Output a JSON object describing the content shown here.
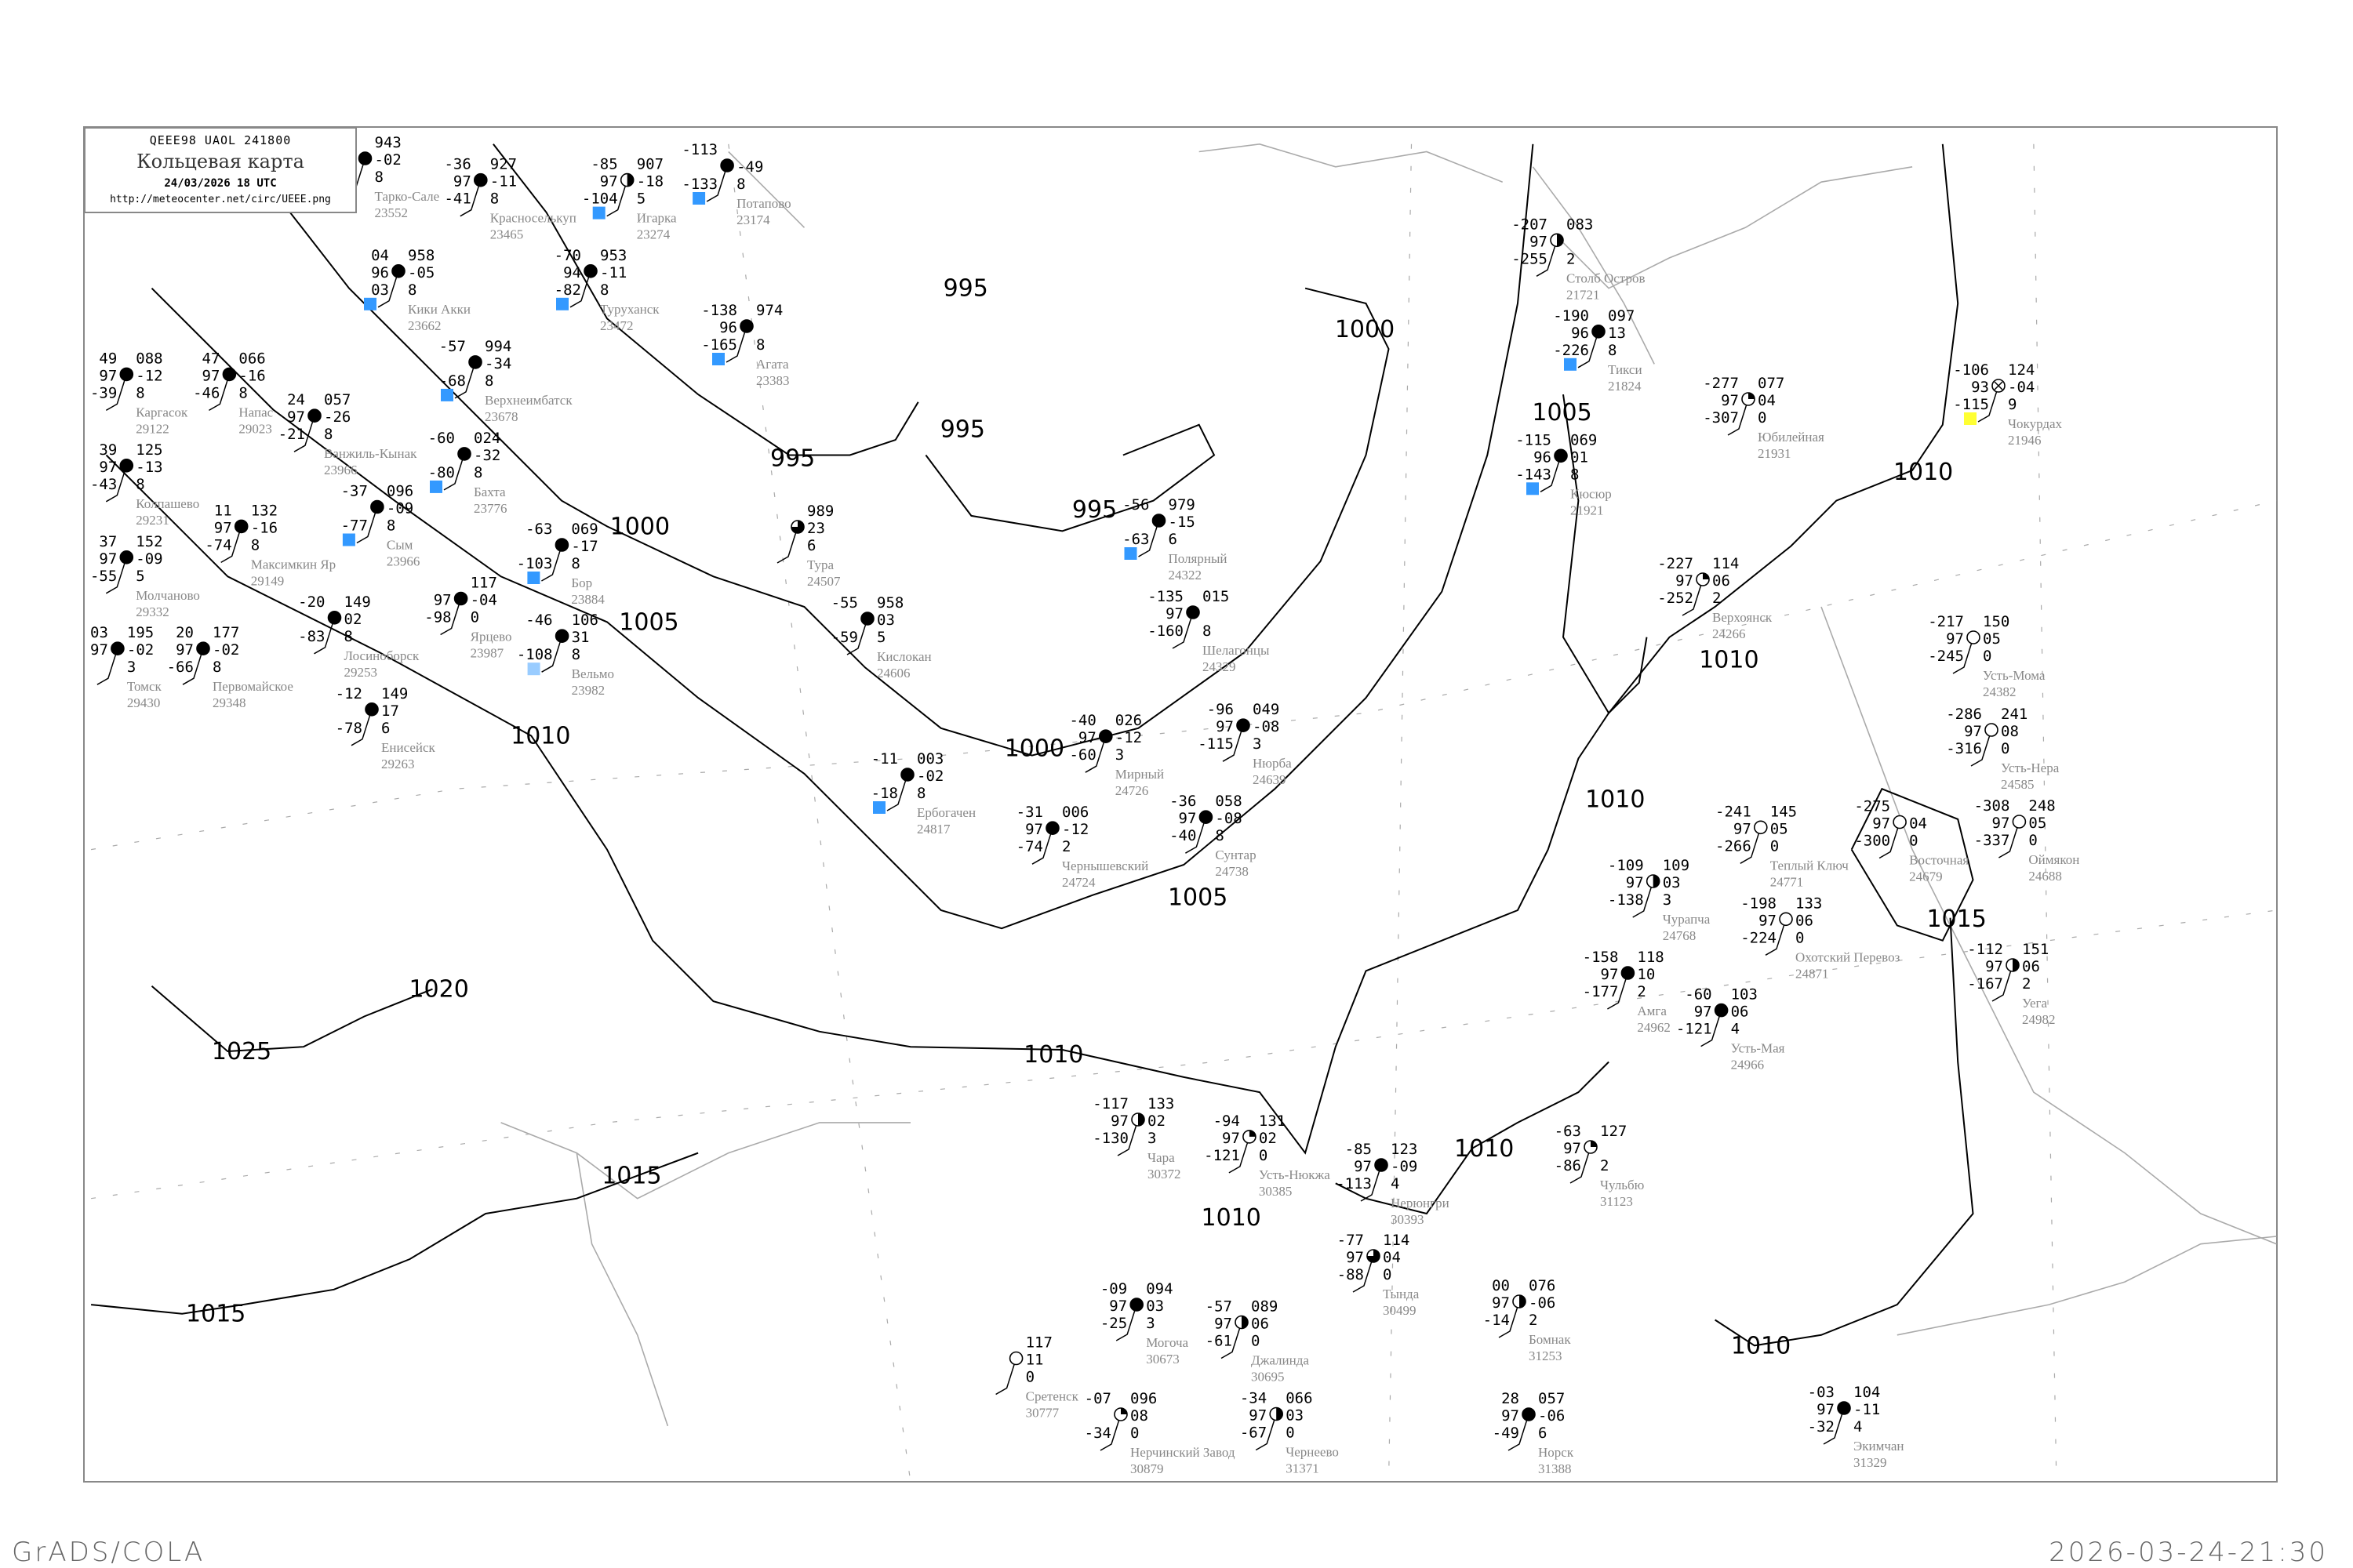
{
  "header": {
    "code_line": "QEEE98  UAOL  241800",
    "title": "Кольцевая карта",
    "date": "24/03/2026 18 UTC",
    "url": "http://meteocenter.net/circ/UEEE.png"
  },
  "footer": {
    "left": "GrADS/COLA",
    "right": "2026-03-24-21:30"
  },
  "colors": {
    "isobar": "#000000",
    "coastline": "#aaaaaa",
    "station_name": "#888888",
    "snow_marker": "#3399ff",
    "light_marker": "#99ccff",
    "yellow_marker": "#ffff33"
  },
  "isobar_labels": [
    "995",
    "995",
    "995",
    "995",
    "1000",
    "1000",
    "1000",
    "1005",
    "1005",
    "1005",
    "1010",
    "1010",
    "1010",
    "1010",
    "1010",
    "1010",
    "1010",
    "1010",
    "1015",
    "1015",
    "1015",
    "1020",
    "1025"
  ],
  "stations": [
    {
      "name": "Тарко-Сале",
      "id": "23552",
      "t": "",
      "vis": "",
      "td": "",
      "p": "943",
      "dp": "-02",
      "c": "8",
      "cover": "full"
    },
    {
      "name": "Красноселькуп",
      "id": "23465",
      "t": "-36",
      "vis": "97",
      "td": "-41",
      "p": "927",
      "dp": "-11",
      "c": "8",
      "cover": "full"
    },
    {
      "name": "Игарка",
      "id": "23274",
      "t": "-85",
      "vis": "97",
      "td": "-104",
      "p": "907",
      "dp": "-18",
      "c": "5",
      "cover": "half",
      "mark": "snow"
    },
    {
      "name": "Потапово",
      "id": "23174",
      "t": "-113",
      "vis": "",
      "td": "-133",
      "p": "",
      "dp": "-49",
      "c": "8",
      "cover": "full",
      "mark": "snow"
    },
    {
      "name": "Кики Акки",
      "id": "23662",
      "t": "04",
      "vis": "96",
      "td": "03",
      "p": "958",
      "dp": "-05",
      "c": "8",
      "cover": "full",
      "mark": "snow"
    },
    {
      "name": "Туруханск",
      "id": "23472",
      "t": "-70",
      "vis": "94",
      "td": "-82",
      "p": "953",
      "dp": "-11",
      "c": "8",
      "cover": "full",
      "mark": "snow"
    },
    {
      "name": "Агата",
      "id": "23383",
      "t": "-138",
      "vis": "96",
      "td": "-165",
      "p": "974",
      "dp": "",
      "c": "8",
      "cover": "full",
      "mark": "snow"
    },
    {
      "name": "Каргасок",
      "id": "29122",
      "t": "49",
      "vis": "97",
      "td": "-39",
      "p": "088",
      "dp": "-12",
      "c": "8",
      "cover": "full"
    },
    {
      "name": "Напас",
      "id": "29023",
      "t": "47",
      "vis": "97",
      "td": "-46",
      "p": "066",
      "dp": "-16",
      "c": "8",
      "cover": "full"
    },
    {
      "name": "Ванжиль-Кынак",
      "id": "23966",
      "t": "24",
      "vis": "97",
      "td": "-21",
      "p": "057",
      "dp": "-26",
      "c": "8",
      "cover": "full"
    },
    {
      "name": "Верхнеимбатск",
      "id": "23678",
      "t": "-57",
      "vis": "",
      "td": "-68",
      "p": "994",
      "dp": "-34",
      "c": "8",
      "cover": "full",
      "mark": "snow"
    },
    {
      "name": "Бахта",
      "id": "23776",
      "t": "-60",
      "vis": "",
      "td": "-80",
      "p": "024",
      "dp": "-32",
      "c": "8",
      "cover": "full",
      "mark": "snow"
    },
    {
      "name": "Бор",
      "id": "23884",
      "t": "-63",
      "vis": "",
      "td": "-103",
      "p": "069",
      "dp": "-17",
      "c": "8",
      "cover": "full",
      "mark": "snow"
    },
    {
      "name": "Колпашево",
      "id": "29231",
      "t": "39",
      "vis": "97",
      "td": "-43",
      "p": "125",
      "dp": "-13",
      "c": "8",
      "cover": "full"
    },
    {
      "name": "Молчаново",
      "id": "29332",
      "t": "37",
      "vis": "97",
      "td": "-55",
      "p": "152",
      "dp": "-09",
      "c": "5",
      "cover": "full"
    },
    {
      "name": "Сым",
      "id": "23966",
      "t": "-37",
      "vis": "",
      "td": "-77",
      "p": "096",
      "dp": "-09",
      "c": "8",
      "cover": "full",
      "mark": "snow"
    },
    {
      "name": "Ярцево",
      "id": "23987",
      "t": "",
      "vis": "97",
      "td": "-98",
      "p": "117",
      "dp": "-04",
      "c": "0",
      "cover": "full"
    },
    {
      "name": "Максимкин Яр",
      "id": "29149",
      "t": "11",
      "vis": "97",
      "td": "-74",
      "p": "132",
      "dp": "-16",
      "c": "8",
      "cover": "full"
    },
    {
      "name": "Вельмо",
      "id": "23982",
      "t": "-46",
      "vis": "",
      "td": "-108",
      "p": "106",
      "dp": "31",
      "c": "8",
      "cover": "full",
      "mark": "light"
    },
    {
      "name": "Томск",
      "id": "29430",
      "t": "03",
      "vis": "97",
      "td": "",
      "p": "195",
      "dp": "-02",
      "c": "3",
      "cover": "full"
    },
    {
      "name": "Первомайское",
      "id": "29348",
      "t": "20",
      "vis": "97",
      "td": "-66",
      "p": "177",
      "dp": "-02",
      "c": "8",
      "cover": "full"
    },
    {
      "name": "Лосиноборск",
      "id": "29253",
      "t": "-20",
      "vis": "",
      "td": "-83",
      "p": "149",
      "dp": "02",
      "c": "8",
      "cover": "full"
    },
    {
      "name": "Енисейск",
      "id": "29263",
      "t": "-12",
      "vis": "",
      "td": "-78",
      "p": "149",
      "dp": "17",
      "c": "6",
      "cover": "full"
    },
    {
      "name": "Тура",
      "id": "24507",
      "t": "",
      "vis": "",
      "td": "",
      "p": "989",
      "dp": "23",
      "c": "6",
      "cover": "quarter3"
    },
    {
      "name": "Кислокан",
      "id": "24606",
      "t": "-55",
      "vis": "",
      "td": "-59",
      "p": "958",
      "dp": "03",
      "c": "5",
      "cover": "full"
    },
    {
      "name": "Полярный",
      "id": "24322",
      "t": "-56",
      "vis": "",
      "td": "-63",
      "p": "979",
      "dp": "-15",
      "c": "6",
      "cover": "full",
      "mark": "snow"
    },
    {
      "name": "Шелагонцы",
      "id": "24329",
      "t": "-135",
      "vis": "97",
      "td": "-160",
      "p": "015",
      "dp": "",
      "c": "8",
      "cover": "full"
    },
    {
      "name": "Ербогачен",
      "id": "24817",
      "t": "-11",
      "vis": "",
      "td": "-18",
      "p": "003",
      "dp": "-02",
      "c": "8",
      "cover": "full",
      "mark": "snow"
    },
    {
      "name": "Чернышевский",
      "id": "24724",
      "t": "-31",
      "vis": "97",
      "td": "-74",
      "p": "006",
      "dp": "-12",
      "c": "2",
      "cover": "full"
    },
    {
      "name": "Мирный",
      "id": "24726",
      "t": "-40",
      "vis": "97",
      "td": "-60",
      "p": "026",
      "dp": "-12",
      "c": "3",
      "cover": "full"
    },
    {
      "name": "Нюрба",
      "id": "24639",
      "t": "-96",
      "vis": "97",
      "td": "-115",
      "p": "049",
      "dp": "-08",
      "c": "3",
      "cover": "full"
    },
    {
      "name": "Сунтар",
      "id": "24738",
      "t": "-36",
      "vis": "97",
      "td": "-40",
      "p": "058",
      "dp": "-08",
      "c": "8",
      "cover": "full"
    },
    {
      "name": "Столб Остров",
      "id": "21721",
      "t": "-207",
      "vis": "97",
      "td": "-255",
      "p": "083",
      "dp": "",
      "c": "2",
      "cover": "half"
    },
    {
      "name": "Тикси",
      "id": "21824",
      "t": "-190",
      "vis": "96",
      "td": "-226",
      "p": "097",
      "dp": "13",
      "c": "8",
      "cover": "full",
      "mark": "snow"
    },
    {
      "name": "Кюсюр",
      "id": "21921",
      "t": "-115",
      "vis": "96",
      "td": "-143",
      "p": "069",
      "dp": "01",
      "c": "8",
      "cover": "full",
      "mark": "snow"
    },
    {
      "name": "Юбилейная",
      "id": "21931",
      "t": "-277",
      "vis": "97",
      "td": "-307",
      "p": "077",
      "dp": "04",
      "c": "0",
      "cover": "quarter"
    },
    {
      "name": "Чокурдах",
      "id": "21946",
      "t": "-106",
      "vis": "93",
      "td": "-115",
      "p": "124",
      "dp": "-04",
      "c": "9",
      "cover": "obscured",
      "mark": "yellow"
    },
    {
      "name": "Верхоянск",
      "id": "24266",
      "t": "-227",
      "vis": "97",
      "td": "-252",
      "p": "114",
      "dp": "06",
      "c": "2",
      "cover": "quarter"
    },
    {
      "name": "Усть-Мома",
      "id": "24382",
      "t": "-217",
      "vis": "97",
      "td": "-245",
      "p": "150",
      "dp": "05",
      "c": "0",
      "cover": "empty"
    },
    {
      "name": "Усть-Нера",
      "id": "24585",
      "t": "-286",
      "vis": "97",
      "td": "-316",
      "p": "241",
      "dp": "08",
      "c": "0",
      "cover": "empty"
    },
    {
      "name": "Оймякон",
      "id": "24688",
      "t": "-308",
      "vis": "97",
      "td": "-337",
      "p": "248",
      "dp": "05",
      "c": "0",
      "cover": "empty"
    },
    {
      "name": "Восточная",
      "id": "24679",
      "t": "-275",
      "vis": "97",
      "td": "-300",
      "p": "",
      "dp": "04",
      "c": "0",
      "cover": "empty"
    },
    {
      "name": "Теплый Ключ",
      "id": "24771",
      "t": "-241",
      "vis": "97",
      "td": "-266",
      "p": "145",
      "dp": "05",
      "c": "0",
      "cover": "empty"
    },
    {
      "name": "Охотский Перевоз",
      "id": "24871",
      "t": "-198",
      "vis": "97",
      "td": "-224",
      "p": "133",
      "dp": "06",
      "c": "0",
      "cover": "empty"
    },
    {
      "name": "Чурапча",
      "id": "24768",
      "t": "-109",
      "vis": "97",
      "td": "-138",
      "p": "109",
      "dp": "03",
      "c": "3",
      "cover": "half"
    },
    {
      "name": "Амга",
      "id": "24962",
      "t": "-158",
      "vis": "97",
      "td": "-177",
      "p": "118",
      "dp": "10",
      "c": "2",
      "cover": "full"
    },
    {
      "name": "Усть-Мая",
      "id": "24966",
      "t": "-60",
      "vis": "97",
      "td": "-121",
      "p": "103",
      "dp": "06",
      "c": "4",
      "cover": "full"
    },
    {
      "name": "Уега",
      "id": "24982",
      "t": "-112",
      "vis": "97",
      "td": "-167",
      "p": "151",
      "dp": "06",
      "c": "2",
      "cover": "half"
    },
    {
      "name": "Чара",
      "id": "30372",
      "t": "-117",
      "vis": "97",
      "td": "-130",
      "p": "133",
      "dp": "02",
      "c": "3",
      "cover": "half"
    },
    {
      "name": "Усть-Нюкжа",
      "id": "30385",
      "t": "-94",
      "vis": "97",
      "td": "-121",
      "p": "131",
      "dp": "02",
      "c": "0",
      "cover": "quarter"
    },
    {
      "name": "Нерюнгри",
      "id": "30393",
      "t": "-85",
      "vis": "97",
      "td": "-113",
      "p": "123",
      "dp": "-09",
      "c": "4",
      "cover": "full"
    },
    {
      "name": "Чульбю",
      "id": "31123",
      "t": "-63",
      "vis": "97",
      "td": "-86",
      "p": "127",
      "dp": "",
      "c": "2",
      "cover": "quarter"
    },
    {
      "name": "Тында",
      "id": "30499",
      "t": "-77",
      "vis": "97",
      "td": "-88",
      "p": "114",
      "dp": "04",
      "c": "0",
      "cover": "quarter3"
    },
    {
      "name": "Могоча",
      "id": "30673",
      "t": "-09",
      "vis": "97",
      "td": "-25",
      "p": "094",
      "dp": "03",
      "c": "3",
      "cover": "full"
    },
    {
      "name": "Бомнак",
      "id": "31253",
      "t": "00",
      "vis": "97",
      "td": "-14",
      "p": "076",
      "dp": "-06",
      "c": "2",
      "cover": "half"
    },
    {
      "name": "Джалинда",
      "id": "30695",
      "t": "-57",
      "vis": "97",
      "td": "-61",
      "p": "089",
      "dp": "06",
      "c": "0",
      "cover": "half"
    },
    {
      "name": "Чернеево",
      "id": "31371",
      "t": "-34",
      "vis": "97",
      "td": "-67",
      "p": "066",
      "dp": "03",
      "c": "0",
      "cover": "half"
    },
    {
      "name": "Экимчан",
      "id": "31329",
      "t": "-03",
      "vis": "97",
      "td": "-32",
      "p": "104",
      "dp": "-11",
      "c": "4",
      "cover": "full"
    },
    {
      "name": "Норск",
      "id": "31388",
      "t": "28",
      "vis": "97",
      "td": "-49",
      "p": "057",
      "dp": "-06",
      "c": "6",
      "cover": "full"
    },
    {
      "name": "Нерчинский Завод",
      "id": "30879",
      "t": "-07",
      "vis": "",
      "td": "-34",
      "p": "096",
      "dp": "08",
      "c": "0",
      "cover": "quarter"
    },
    {
      "name": "Сретенск",
      "id": "30777",
      "t": "",
      "vis": "",
      "td": "",
      "p": "117",
      "dp": "11",
      "c": "0",
      "cover": "empty"
    }
  ]
}
